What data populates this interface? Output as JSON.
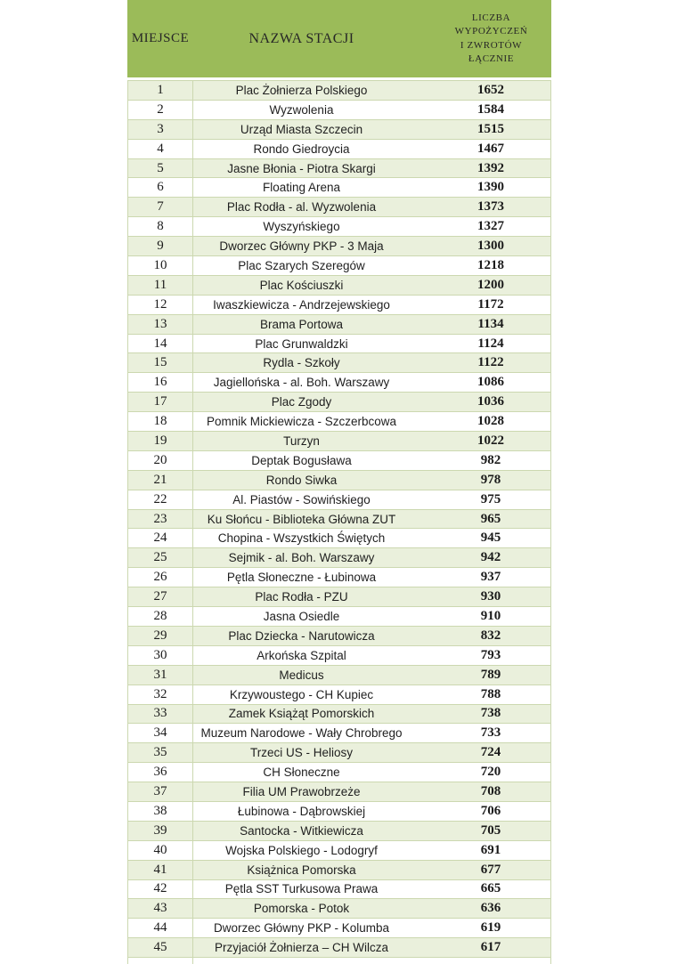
{
  "colors": {
    "header_bg": "#9bbb59",
    "row_alt_bg": "#eaf0dc",
    "row_bg": "#ffffff",
    "border": "#ccd8b0",
    "text": "#1a1a1a"
  },
  "table": {
    "headers": {
      "rank": "MIEJSCE",
      "station": "NAZWA STACJI",
      "count_lines": [
        "LICZBA",
        "WYPOŻYCZEŃ",
        "I ZWROTÓW",
        "ŁĄCZNIE"
      ]
    },
    "rows": [
      {
        "rank": "1",
        "station": "Plac Żołnierza Polskiego",
        "count": "1652"
      },
      {
        "rank": "2",
        "station": "Wyzwolenia",
        "count": "1584"
      },
      {
        "rank": "3",
        "station": "Urząd Miasta Szczecin",
        "count": "1515"
      },
      {
        "rank": "4",
        "station": "Rondo Giedroycia",
        "count": "1467"
      },
      {
        "rank": "5",
        "station": "Jasne Błonia - Piotra Skargi",
        "count": "1392"
      },
      {
        "rank": "6",
        "station": "Floating Arena",
        "count": "1390"
      },
      {
        "rank": "7",
        "station": "Plac Rodła - al. Wyzwolenia",
        "count": "1373"
      },
      {
        "rank": "8",
        "station": "Wyszyńskiego",
        "count": "1327"
      },
      {
        "rank": "9",
        "station": "Dworzec Główny PKP - 3 Maja",
        "count": "1300"
      },
      {
        "rank": "10",
        "station": "Plac Szarych Szeregów",
        "count": "1218"
      },
      {
        "rank": "11",
        "station": "Plac Kościuszki",
        "count": "1200"
      },
      {
        "rank": "12",
        "station": "Iwaszkiewicza - Andrzejewskiego",
        "count": "1172"
      },
      {
        "rank": "13",
        "station": "Brama Portowa",
        "count": "1134"
      },
      {
        "rank": "14",
        "station": "Plac Grunwaldzki",
        "count": "1124"
      },
      {
        "rank": "15",
        "station": "Rydla - Szkoły",
        "count": "1122"
      },
      {
        "rank": "16",
        "station": "Jagiellońska - al. Boh. Warszawy",
        "count": "1086"
      },
      {
        "rank": "17",
        "station": "Plac Zgody",
        "count": "1036"
      },
      {
        "rank": "18",
        "station": "Pomnik Mickiewicza - Szczerbcowa",
        "count": "1028"
      },
      {
        "rank": "19",
        "station": "Turzyn",
        "count": "1022"
      },
      {
        "rank": "20",
        "station": "Deptak Bogusława",
        "count": "982"
      },
      {
        "rank": "21",
        "station": "Rondo Siwka",
        "count": "978"
      },
      {
        "rank": "22",
        "station": "Al. Piastów - Sowińskiego",
        "count": "975"
      },
      {
        "rank": "23",
        "station": "Ku Słońcu - Biblioteka Główna ZUT",
        "count": "965"
      },
      {
        "rank": "24",
        "station": "Chopina - Wszystkich Świętych",
        "count": "945"
      },
      {
        "rank": "25",
        "station": "Sejmik - al. Boh. Warszawy",
        "count": "942"
      },
      {
        "rank": "26",
        "station": "Pętla Słoneczne - Łubinowa",
        "count": "937"
      },
      {
        "rank": "27",
        "station": "Plac Rodła - PZU",
        "count": "930"
      },
      {
        "rank": "28",
        "station": "Jasna Osiedle",
        "count": "910"
      },
      {
        "rank": "29",
        "station": "Plac Dziecka - Narutowicza",
        "count": "832"
      },
      {
        "rank": "30",
        "station": "Arkońska Szpital",
        "count": "793"
      },
      {
        "rank": "31",
        "station": "Medicus",
        "count": "789"
      },
      {
        "rank": "32",
        "station": "Krzywoustego - CH Kupiec",
        "count": "788"
      },
      {
        "rank": "33",
        "station": "Zamek Książąt Pomorskich",
        "count": "738"
      },
      {
        "rank": "34",
        "station": "Muzeum Narodowe - Wały Chrobrego",
        "count": "733"
      },
      {
        "rank": "35",
        "station": "Trzeci US - Heliosy",
        "count": "724"
      },
      {
        "rank": "36",
        "station": "CH Słoneczne",
        "count": "720"
      },
      {
        "rank": "37",
        "station": "Filia UM Prawobrzeże",
        "count": "708"
      },
      {
        "rank": "38",
        "station": "Łubinowa - Dąbrowskiej",
        "count": "706"
      },
      {
        "rank": "39",
        "station": "Santocka - Witkiewicza",
        "count": "705"
      },
      {
        "rank": "40",
        "station": "Wojska Polskiego - Lodogryf",
        "count": "691"
      },
      {
        "rank": "41",
        "station": "Książnica Pomorska",
        "count": "677"
      },
      {
        "rank": "42",
        "station": "Pętla SST Turkusowa Prawa",
        "count": "665"
      },
      {
        "rank": "43",
        "station": "Pomorska - Potok",
        "count": "636"
      },
      {
        "rank": "44",
        "station": "Dworzec Główny PKP - Kolumba",
        "count": "619"
      },
      {
        "rank": "45",
        "station": "Przyjaciół Żołnierza – CH Wilcza",
        "count": "617"
      }
    ]
  },
  "chart_data": {
    "type": "table",
    "title": "",
    "columns": [
      "MIEJSCE",
      "NAZWA STACJI",
      "LICZBA WYPOŻYCZEŃ I ZWROTÓW ŁĄCZNIE"
    ]
  }
}
